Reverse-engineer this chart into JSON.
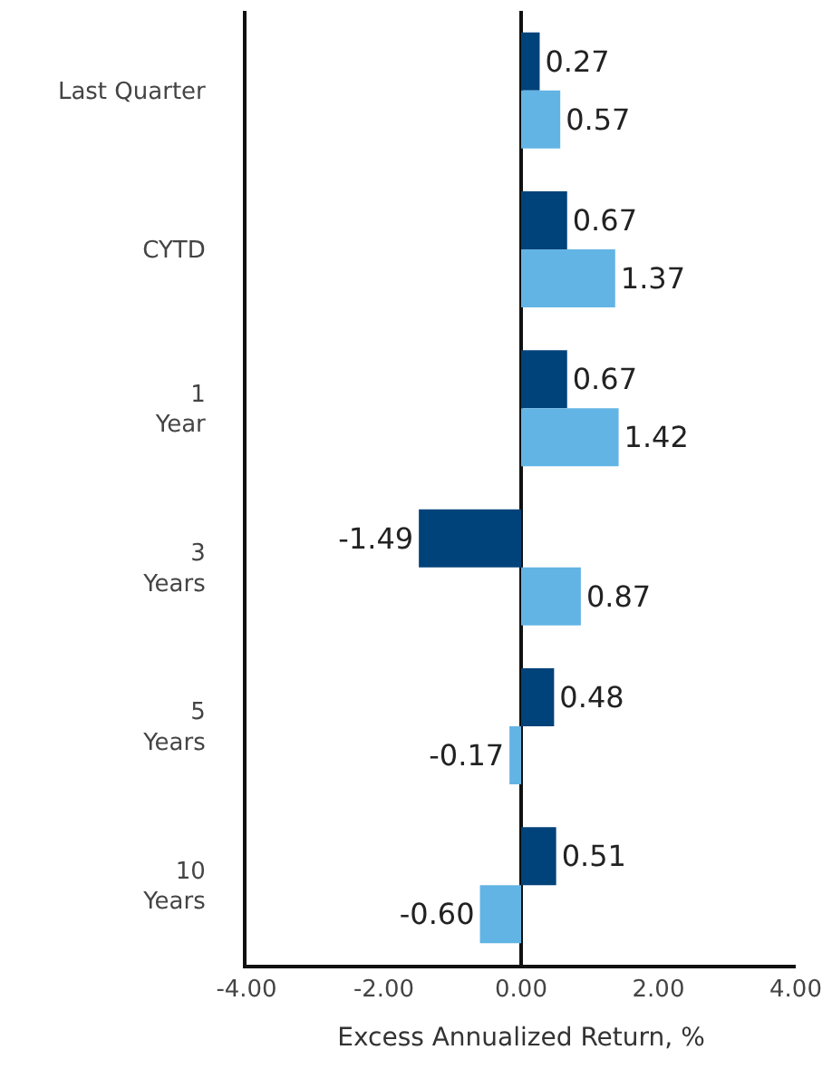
{
  "chart_data": {
    "type": "bar",
    "orientation": "horizontal",
    "xlabel": "Excess Annualized Return, %",
    "categories": [
      "Last Quarter",
      "CYTD",
      "1\nYear",
      "3\nYears",
      "5\nYears",
      "10\nYears"
    ],
    "series": [
      {
        "color": "#00427a",
        "values": [
          0.27,
          0.67,
          0.67,
          -1.49,
          0.48,
          0.51
        ],
        "value_labels": [
          "0.27",
          "0.67",
          "0.67",
          "-1.49",
          "0.48",
          "0.51"
        ]
      },
      {
        "color": "#62b4e4",
        "values": [
          0.57,
          1.37,
          1.42,
          0.87,
          -0.17,
          -0.6
        ],
        "value_labels": [
          "0.57",
          "1.37",
          "1.42",
          "0.87",
          "-0.17",
          "-0.60"
        ]
      }
    ],
    "xlim": [
      -4,
      4
    ],
    "xticks": [
      {
        "value": -4,
        "label": "-4.00"
      },
      {
        "value": -2,
        "label": "-2.00"
      },
      {
        "value": 0,
        "label": "0.00"
      },
      {
        "value": 2,
        "label": "2.00"
      },
      {
        "value": 4,
        "label": "4.00"
      }
    ]
  }
}
